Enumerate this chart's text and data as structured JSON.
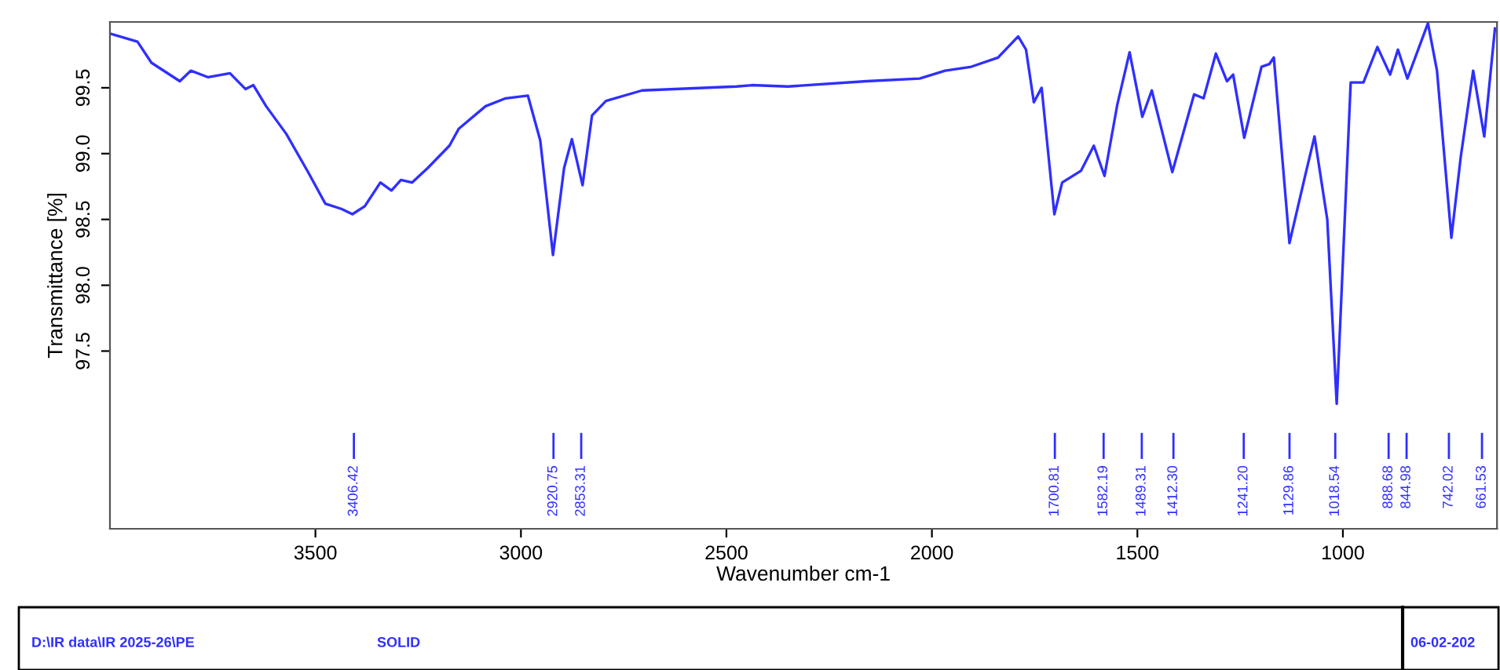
{
  "chart_data": {
    "type": "line",
    "xlabel": "Wavenumber cm-1",
    "ylabel": "Transmittance [%]",
    "xlim": [
      4000,
      625
    ],
    "ylim": [
      96.15,
      100
    ],
    "xticks": [
      3500,
      3000,
      2500,
      2000,
      1500,
      1000
    ],
    "yticks": [
      {
        "value": 97.5,
        "label": "97.5"
      },
      {
        "value": 98.0,
        "label": "98.0"
      },
      {
        "value": 98.5,
        "label": "98.5"
      },
      {
        "value": 99.0,
        "label": "99.0"
      },
      {
        "value": 99.5,
        "label": "99.5"
      }
    ],
    "grid": false,
    "legend": false,
    "marker": "none",
    "line_style": "solid",
    "series": [
      {
        "color": "#2f2fff",
        "x": [
          3998,
          3933,
          3899,
          3830,
          3803,
          3761,
          3708,
          3670,
          3651,
          3620,
          3571,
          3518,
          3476,
          3437,
          3410,
          3380,
          3342,
          3315,
          3292,
          3265,
          3227,
          3174,
          3151,
          3086,
          3037,
          2983,
          2953,
          2922,
          2895,
          2876,
          2850,
          2827,
          2793,
          2705,
          2476,
          2438,
          2350,
          2159,
          2030,
          1968,
          1904,
          1839,
          1790,
          1771,
          1752,
          1733,
          1702,
          1683,
          1637,
          1606,
          1580,
          1549,
          1519,
          1488,
          1465,
          1415,
          1362,
          1339,
          1309,
          1282,
          1267,
          1240,
          1198,
          1179,
          1168,
          1130,
          1092,
          1069,
          1038,
          1015,
          981,
          950,
          916,
          885,
          866,
          843,
          793,
          771,
          736,
          713,
          683,
          656,
          630
        ],
        "values": [
          99.91,
          99.85,
          99.69,
          99.55,
          99.63,
          99.58,
          99.61,
          99.49,
          99.52,
          99.36,
          99.15,
          98.86,
          98.62,
          98.58,
          98.54,
          98.6,
          98.78,
          98.72,
          98.8,
          98.78,
          98.89,
          99.06,
          99.19,
          99.36,
          99.42,
          99.44,
          99.1,
          98.23,
          98.89,
          99.11,
          98.76,
          99.29,
          99.4,
          99.48,
          99.51,
          99.52,
          99.51,
          99.55,
          99.57,
          99.63,
          99.66,
          99.73,
          99.89,
          99.79,
          99.39,
          99.5,
          98.54,
          98.78,
          98.87,
          99.06,
          98.83,
          99.37,
          99.77,
          99.28,
          99.48,
          98.86,
          99.45,
          99.42,
          99.76,
          99.55,
          99.6,
          99.12,
          99.66,
          99.68,
          99.73,
          98.32,
          98.83,
          99.13,
          98.5,
          97.1,
          99.54,
          99.54,
          99.81,
          99.6,
          99.79,
          99.57,
          99.99,
          99.63,
          98.36,
          98.98,
          99.63,
          99.13,
          99.95
        ]
      }
    ],
    "ref_lines": [
      {
        "axis": "x",
        "value": 3406.42,
        "label": "3406.42",
        "color": "#2f2fff"
      },
      {
        "axis": "x",
        "value": 2920.75,
        "label": "2920.75",
        "color": "#2f2fff"
      },
      {
        "axis": "x",
        "value": 2853.31,
        "label": "2853.31",
        "color": "#2f2fff"
      },
      {
        "axis": "x",
        "value": 1700.81,
        "label": "1700.81",
        "color": "#2f2fff"
      },
      {
        "axis": "x",
        "value": 1582.19,
        "label": "1582.19",
        "color": "#2f2fff"
      },
      {
        "axis": "x",
        "value": 1489.31,
        "label": "1489.31",
        "color": "#2f2fff"
      },
      {
        "axis": "x",
        "value": 1412.3,
        "label": "1412.30",
        "color": "#2f2fff"
      },
      {
        "axis": "x",
        "value": 1241.2,
        "label": "1241.20",
        "color": "#2f2fff"
      },
      {
        "axis": "x",
        "value": 1129.86,
        "label": "1129.86",
        "color": "#2f2fff"
      },
      {
        "axis": "x",
        "value": 1018.54,
        "label": "1018.54",
        "color": "#2f2fff"
      },
      {
        "axis": "x",
        "value": 888.68,
        "label": "888.68",
        "color": "#2f2fff"
      },
      {
        "axis": "x",
        "value": 844.98,
        "label": "844.98",
        "color": "#2f2fff"
      },
      {
        "axis": "x",
        "value": 742.02,
        "label": "742.02",
        "color": "#2f2fff"
      },
      {
        "axis": "x",
        "value": 661.53,
        "label": "661.53",
        "color": "#2f2fff"
      }
    ],
    "annotations": [
      "D:\\IR data\\IR 2025-26\\PE",
      "SOLID",
      "06-02-202"
    ]
  }
}
